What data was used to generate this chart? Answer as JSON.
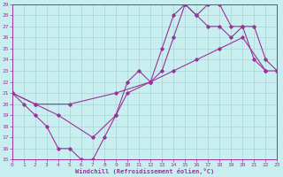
{
  "xlabel": "Windchill (Refroidissement éolien,°C)",
  "xlim": [
    0,
    23
  ],
  "ylim": [
    15,
    29
  ],
  "yticks": [
    15,
    16,
    17,
    18,
    19,
    20,
    21,
    22,
    23,
    24,
    25,
    26,
    27,
    28,
    29
  ],
  "xticks": [
    0,
    1,
    2,
    3,
    4,
    5,
    6,
    7,
    8,
    9,
    10,
    11,
    12,
    13,
    14,
    15,
    16,
    17,
    18,
    19,
    20,
    21,
    22,
    23
  ],
  "bg_color": "#c8eef0",
  "line_color": "#993399",
  "grid_color": "#9ecece",
  "line1": [
    [
      0,
      21
    ],
    [
      1,
      20
    ],
    [
      2,
      19
    ],
    [
      3,
      18
    ],
    [
      4,
      16
    ],
    [
      5,
      16
    ],
    [
      6,
      15
    ],
    [
      7,
      15
    ],
    [
      8,
      17
    ],
    [
      9,
      19
    ],
    [
      10,
      22
    ],
    [
      11,
      23
    ],
    [
      12,
      22
    ],
    [
      13,
      25
    ],
    [
      14,
      28
    ],
    [
      15,
      29
    ],
    [
      16,
      28
    ],
    [
      17,
      29
    ],
    [
      18,
      29
    ],
    [
      19,
      27
    ],
    [
      20,
      27
    ],
    [
      21,
      24
    ],
    [
      22,
      23
    ]
  ],
  "line2": [
    [
      0,
      21
    ],
    [
      2,
      20
    ],
    [
      4,
      19
    ],
    [
      7,
      17
    ],
    [
      9,
      19
    ],
    [
      10,
      21
    ],
    [
      12,
      22
    ],
    [
      13,
      23
    ],
    [
      14,
      26
    ],
    [
      15,
      29
    ],
    [
      16,
      28
    ],
    [
      17,
      27
    ],
    [
      18,
      27
    ],
    [
      19,
      26
    ],
    [
      20,
      27
    ],
    [
      21,
      27
    ],
    [
      22,
      24
    ],
    [
      23,
      23
    ]
  ],
  "line3": [
    [
      0,
      21
    ],
    [
      2,
      20
    ],
    [
      5,
      20
    ],
    [
      9,
      21
    ],
    [
      12,
      22
    ],
    [
      14,
      23
    ],
    [
      16,
      24
    ],
    [
      18,
      25
    ],
    [
      20,
      26
    ],
    [
      22,
      23
    ],
    [
      23,
      23
    ]
  ]
}
